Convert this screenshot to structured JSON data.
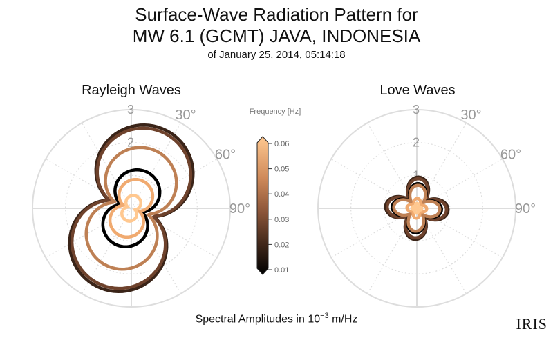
{
  "header": {
    "title_line1": "Surface-Wave Radiation Pattern for",
    "title_line2": "MW 6.1 (GCMT) JAVA, INDONESIA",
    "subtitle": "of January 25, 2014, 05:14:18"
  },
  "footer": {
    "label_prefix": "Spectral Amplitudes in 10",
    "label_exp": "−3",
    "label_suffix": " m/Hz"
  },
  "logo": "IRIS",
  "colorbar": {
    "label": "Frequency [Hz]",
    "ticks": [
      "0.06",
      "0.05",
      "0.04",
      "0.03",
      "0.02",
      "0.01"
    ]
  },
  "chart_data": [
    {
      "type": "polar",
      "title": "Rayleigh Waves",
      "r_ticks": [
        "1",
        "2",
        "3"
      ],
      "theta_ticks": [
        "30°",
        "60°",
        "90°"
      ],
      "rlim": [
        0,
        3
      ],
      "series_by_frequency_hz": [
        {
          "frequency": 0.01,
          "peak_amplitude": 1.2
        },
        {
          "frequency": 0.02,
          "peak_amplitude": 2.6
        },
        {
          "frequency": 0.03,
          "peak_amplitude": 2.5
        },
        {
          "frequency": 0.04,
          "peak_amplitude": 1.9
        },
        {
          "frequency": 0.05,
          "peak_amplitude": 0.9
        },
        {
          "frequency": 0.06,
          "peak_amplitude": 0.4
        }
      ]
    },
    {
      "type": "polar",
      "title": "Love Waves",
      "r_ticks": [
        "1",
        "2",
        "3"
      ],
      "theta_ticks": [
        "30°",
        "60°",
        "90°"
      ],
      "rlim": [
        0,
        3
      ],
      "series_by_frequency_hz": [
        {
          "frequency": 0.01,
          "peak_amplitude": 0.75
        },
        {
          "frequency": 0.02,
          "peak_amplitude": 0.95
        },
        {
          "frequency": 0.03,
          "peak_amplitude": 0.9
        },
        {
          "frequency": 0.04,
          "peak_amplitude": 0.7
        },
        {
          "frequency": 0.05,
          "peak_amplitude": 0.3
        },
        {
          "frequency": 0.06,
          "peak_amplitude": 0.15
        }
      ]
    }
  ]
}
